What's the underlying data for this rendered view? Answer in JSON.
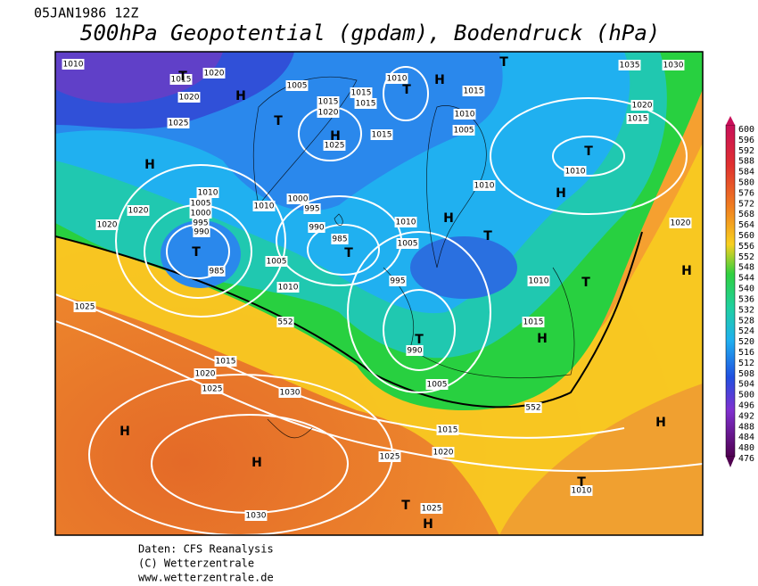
{
  "header": {
    "date": "05JAN1986 12Z",
    "title": "500hPa Geopotential (gpdam), Bodendruck (hPa)"
  },
  "colorbar": {
    "ticks": [
      "600",
      "596",
      "592",
      "588",
      "584",
      "580",
      "576",
      "572",
      "568",
      "564",
      "560",
      "556",
      "552",
      "548",
      "544",
      "540",
      "536",
      "532",
      "528",
      "524",
      "520",
      "516",
      "512",
      "508",
      "504",
      "500",
      "496",
      "492",
      "488",
      "484",
      "480",
      "476"
    ]
  },
  "isobar_labels": [
    "1010",
    "1015",
    "1020",
    "1020",
    "1025",
    "1005",
    "1015",
    "1020",
    "1025",
    "1015",
    "1015",
    "1010",
    "1015",
    "1010",
    "1005",
    "1015",
    "1010",
    "1035",
    "1030",
    "1020",
    "1015",
    "1010",
    "1020",
    "1010",
    "1005",
    "1000",
    "995",
    "990",
    "985",
    "1020",
    "1020",
    "1010",
    "1000",
    "995",
    "990",
    "985",
    "1005",
    "1010",
    "1010",
    "1005",
    "995",
    "990",
    "1010",
    "1015",
    "552",
    "1025",
    "1015",
    "1020",
    "1025",
    "1030",
    "1005",
    "552",
    "1015",
    "1020",
    "1025",
    "1025",
    "1030",
    "1010"
  ],
  "pressure_centers": [
    "T",
    "H",
    "T",
    "H",
    "H",
    "T",
    "H",
    "T",
    "T",
    "H",
    "H",
    "T",
    "T",
    "T",
    "T",
    "H",
    "H",
    "T",
    "H",
    "H",
    "H",
    "T",
    "H",
    "T"
  ],
  "footer": {
    "source": "Daten: CFS Reanalysis",
    "copyright": "(C) Wetterzentrale",
    "url": "www.wetterzentrale.de"
  }
}
